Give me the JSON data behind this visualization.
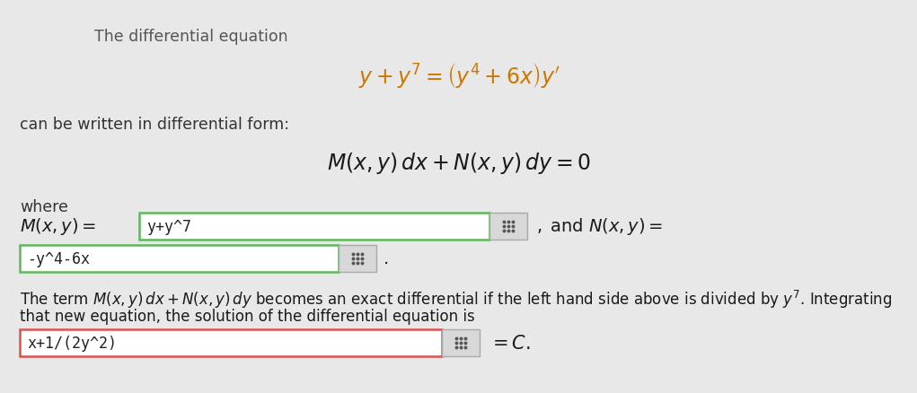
{
  "bg_color": "#e8e8e8",
  "white": "#ffffff",
  "text_color": "#333333",
  "green_border": "#5cb85c",
  "red_border": "#d9534f",
  "title_text": "The differential equation",
  "text1": "can be written in differential form:",
  "text_where": "where",
  "mx_input": "y+y^7",
  "nx_input": "-y^4-6x",
  "sol_input": "x+1/(2y^2)",
  "para_text2": "that new equation, the solution of the differential equation is"
}
